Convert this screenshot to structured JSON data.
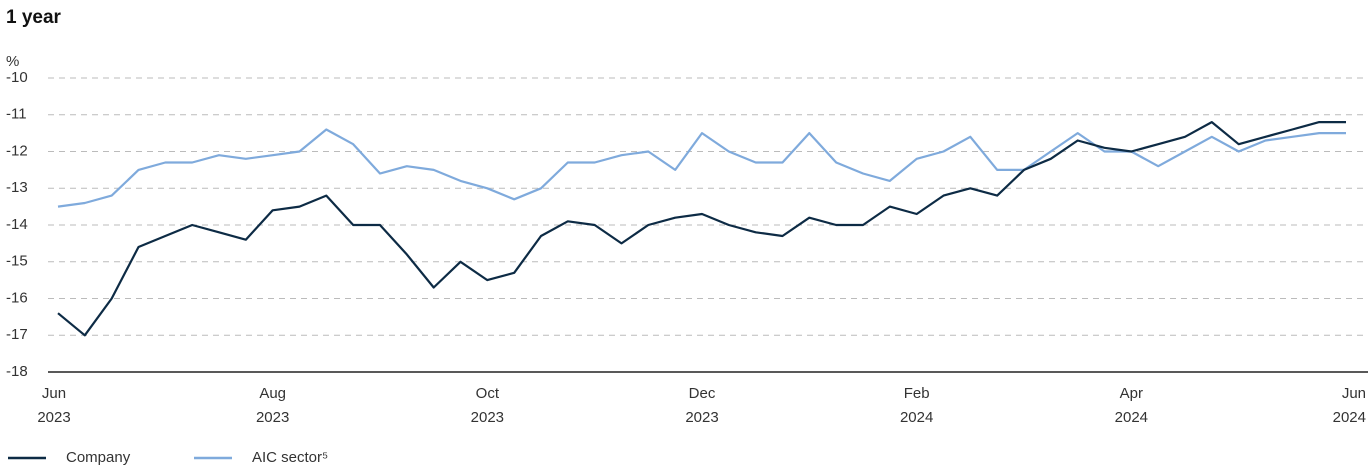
{
  "chart_data": {
    "type": "line",
    "title": "1 year",
    "y_label": "%",
    "categories": [
      "Jun 2023",
      null,
      null,
      null,
      null,
      null,
      null,
      null,
      "Aug 2023",
      null,
      null,
      null,
      null,
      null,
      null,
      null,
      "Oct 2023",
      null,
      null,
      null,
      null,
      null,
      null,
      null,
      "Dec 2023",
      null,
      null,
      null,
      null,
      null,
      null,
      null,
      "Feb 2024",
      null,
      null,
      null,
      null,
      null,
      null,
      null,
      "Apr 2024",
      null,
      null,
      null,
      null,
      null,
      null,
      null,
      "Jun 2024"
    ],
    "series": [
      {
        "name": "Company",
        "color": "#0d2b45",
        "values": [
          -16.4,
          -17.0,
          -16.0,
          -14.6,
          -14.3,
          -14.0,
          -14.2,
          -14.4,
          -13.6,
          -13.5,
          -13.2,
          -14.0,
          -14.0,
          -14.8,
          -15.7,
          -15.0,
          -15.5,
          -15.3,
          -14.3,
          -13.9,
          -14.0,
          -14.5,
          -14.0,
          -13.8,
          -13.7,
          -14.0,
          -14.2,
          -14.3,
          -13.8,
          -14.0,
          -14.0,
          -13.5,
          -13.7,
          -13.2,
          -13.0,
          -13.2,
          -12.5,
          -12.2,
          -11.7,
          -11.9,
          -12.0,
          -11.8,
          -11.6,
          -11.2,
          -11.8,
          -11.6,
          -11.4,
          -11.2,
          -11.2
        ]
      },
      {
        "name": "AIC sector⁵",
        "color": "#7faadc",
        "values": [
          -13.5,
          -13.4,
          -13.2,
          -12.5,
          -12.3,
          -12.3,
          -12.1,
          -12.2,
          -12.1,
          -12.0,
          -11.4,
          -11.8,
          -12.6,
          -12.4,
          -12.5,
          -12.8,
          -13.0,
          -13.3,
          -13.0,
          -12.3,
          -12.3,
          -12.1,
          -12.0,
          -12.5,
          -11.5,
          -12.0,
          -12.3,
          -12.3,
          -11.5,
          -12.3,
          -12.6,
          -12.8,
          -12.2,
          -12.0,
          -11.6,
          -12.5,
          -12.5,
          -12.0,
          -11.5,
          -12.0,
          -12.0,
          -12.4,
          -12.0,
          -11.6,
          -12.0,
          -11.7,
          -11.6,
          -11.5,
          -11.5
        ]
      }
    ],
    "ylim": [
      -18,
      -10
    ],
    "yticks": [
      -10,
      -11,
      -12,
      -13,
      -14,
      -15,
      -16,
      -17,
      -18
    ],
    "grid": true
  }
}
